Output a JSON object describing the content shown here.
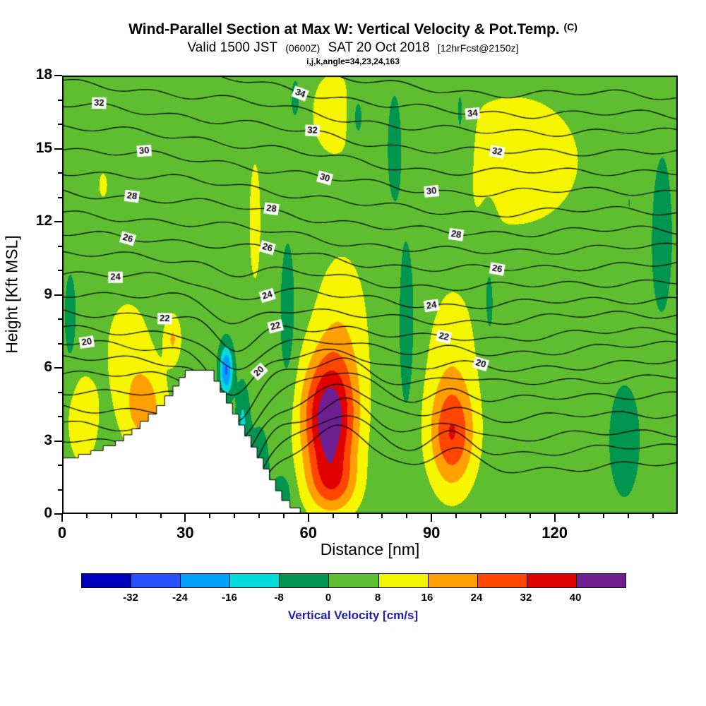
{
  "chart_data": {
    "type": "heatmap",
    "title": "Wind-Parallel Section at Max W: Vertical Velocity & Pot.Temp.",
    "title_unit": "(C)",
    "subtitle_valid": "Valid 1500 JST",
    "subtitle_z": "(0600Z)",
    "subtitle_date": "SAT 20 Oct 2018",
    "subtitle_fcst": "[12hrFcst@2150z]",
    "subtitle_params": "i,j,k,angle=34,23,24,163",
    "xlabel": "Distance [nm]",
    "ylabel": "Height [Kft MSL]",
    "x_range": [
      0,
      150
    ],
    "x_major_ticks": [
      0,
      30,
      60,
      90,
      120
    ],
    "x_minor_step": 6,
    "y_range": [
      0,
      18
    ],
    "y_major_ticks": [
      0,
      3,
      6,
      9,
      12,
      15,
      18
    ],
    "y_minor_step": 1,
    "colorbar": {
      "label": "Vertical Velocity [cm/s]",
      "label_color": "#1e1eb4",
      "levels": [
        -32,
        -24,
        -16,
        -8,
        0,
        8,
        16,
        24,
        32,
        40
      ],
      "colors": [
        "#0000be",
        "#2850ff",
        "#00a0ff",
        "#00dcdc",
        "#009650",
        "#5fbe30",
        "#f5f500",
        "#ffa000",
        "#ff4600",
        "#e00000",
        "#6e2090"
      ]
    },
    "velocity_base": 3,
    "velocity_blobs": [
      [
        65,
        3.8,
        6.5,
        2.6,
        42
      ],
      [
        68,
        7.5,
        7,
        3.5,
        10
      ],
      [
        66,
        1.2,
        6,
        1.2,
        16
      ],
      [
        95,
        3.2,
        5.5,
        2.2,
        27
      ],
      [
        95,
        6.5,
        7,
        3,
        8
      ],
      [
        20,
        4.3,
        5.5,
        1.8,
        16
      ],
      [
        16,
        7,
        7,
        2.5,
        7.5
      ],
      [
        27,
        7.2,
        2,
        1,
        13
      ],
      [
        5,
        3.8,
        4.5,
        2.2,
        9
      ],
      [
        10,
        13.5,
        3,
        1.5,
        5.5
      ],
      [
        47,
        12,
        2.5,
        4.5,
        6.5
      ],
      [
        66,
        16.5,
        8,
        2.5,
        7
      ],
      [
        110,
        14.5,
        27,
        4.5,
        7
      ],
      [
        40,
        5.9,
        1.6,
        1.0,
        -28
      ],
      [
        44,
        3.8,
        1.5,
        1.5,
        -12
      ],
      [
        48,
        2,
        3,
        2,
        -6
      ],
      [
        54,
        0.8,
        2.5,
        1,
        -7
      ],
      [
        55,
        8,
        2,
        3.5,
        -7
      ],
      [
        84,
        8,
        2,
        4,
        -8
      ],
      [
        2,
        8,
        1.5,
        2,
        -7
      ],
      [
        72,
        16.3,
        2,
        1.3,
        -9
      ],
      [
        81,
        15,
        2.5,
        3,
        -8
      ],
      [
        97,
        16,
        2.5,
        3,
        -8
      ],
      [
        57,
        17,
        2,
        1.5,
        -6
      ],
      [
        104,
        9,
        2,
        3,
        -6
      ],
      [
        137,
        3,
        4,
        2.5,
        -7
      ],
      [
        146,
        12,
        4,
        5,
        -5.5
      ],
      [
        138,
        13,
        2.5,
        2.5,
        -5
      ]
    ],
    "theta_contours": [
      {
        "theta": 14,
        "y_left": 3.0,
        "y_right": 2.1,
        "labels": []
      },
      {
        "theta": 15,
        "y_left": 3.7,
        "y_right": 2.8,
        "labels": []
      },
      {
        "theta": 16,
        "y_left": 4.4,
        "y_right": 3.4,
        "labels": []
      },
      {
        "theta": 17,
        "y_left": 5.1,
        "y_right": 4.2,
        "labels": []
      },
      {
        "theta": 18,
        "y_left": 5.8,
        "y_right": 5.0,
        "labels": []
      },
      {
        "theta": 19,
        "y_left": 6.4,
        "y_right": 5.7,
        "labels": []
      },
      {
        "theta": 20,
        "y_left": 7.0,
        "y_right": 6.3,
        "labels": [
          6,
          48,
          102
        ]
      },
      {
        "theta": 21,
        "y_left": 7.6,
        "y_right": 7.0,
        "labels": []
      },
      {
        "theta": 22,
        "y_left": 8.3,
        "y_right": 7.6,
        "labels": [
          25,
          52,
          93
        ]
      },
      {
        "theta": 23,
        "y_left": 9.1,
        "y_right": 8.3,
        "labels": []
      },
      {
        "theta": 24,
        "y_left": 9.9,
        "y_right": 8.9,
        "labels": [
          13,
          50,
          90
        ]
      },
      {
        "theta": 25,
        "y_left": 10.7,
        "y_right": 9.6,
        "labels": []
      },
      {
        "theta": 26,
        "y_left": 11.5,
        "y_right": 10.3,
        "labels": [
          16,
          50,
          106
        ]
      },
      {
        "theta": 27,
        "y_left": 12.3,
        "y_right": 11.0,
        "labels": []
      },
      {
        "theta": 28,
        "y_left": 13.2,
        "y_right": 11.7,
        "labels": [
          17,
          51,
          96
        ]
      },
      {
        "theta": 29,
        "y_left": 14.1,
        "y_right": 12.5,
        "labels": []
      },
      {
        "theta": 30,
        "y_left": 15.0,
        "y_right": 13.3,
        "labels": [
          20,
          64,
          90
        ]
      },
      {
        "theta": 31,
        "y_left": 15.9,
        "y_right": 14.1,
        "labels": []
      },
      {
        "theta": 32,
        "y_left": 16.8,
        "y_right": 14.9,
        "labels": [
          9,
          61,
          106
        ]
      },
      {
        "theta": 33,
        "y_left": 17.7,
        "y_right": 15.7,
        "labels": []
      },
      {
        "theta": 34,
        "y_left": 18.6,
        "y_right": 16.4,
        "labels": [
          58,
          100
        ]
      },
      {
        "theta": 35,
        "y_left": 19.5,
        "y_right": 17.2,
        "labels": []
      }
    ],
    "terrain_steps": [
      [
        0,
        2.3
      ],
      [
        4,
        2.45
      ],
      [
        7,
        2.6
      ],
      [
        10,
        2.8
      ],
      [
        13,
        3.0
      ],
      [
        15,
        3.25
      ],
      [
        17,
        3.5
      ],
      [
        19,
        3.8
      ],
      [
        21,
        4.1
      ],
      [
        23,
        4.45
      ],
      [
        25,
        4.85
      ],
      [
        27,
        5.25
      ],
      [
        28.5,
        5.6
      ],
      [
        30,
        5.9
      ],
      [
        37,
        5.45
      ],
      [
        38.5,
        5.0
      ],
      [
        40,
        4.55
      ],
      [
        41.5,
        4.1
      ],
      [
        43,
        3.65
      ],
      [
        44.5,
        3.2
      ],
      [
        46,
        2.75
      ],
      [
        47.5,
        2.3
      ],
      [
        49,
        1.85
      ],
      [
        50.5,
        1.4
      ],
      [
        52,
        0.95
      ],
      [
        53.5,
        0.55
      ],
      [
        55.5,
        0.25
      ],
      [
        58,
        0
      ]
    ]
  }
}
